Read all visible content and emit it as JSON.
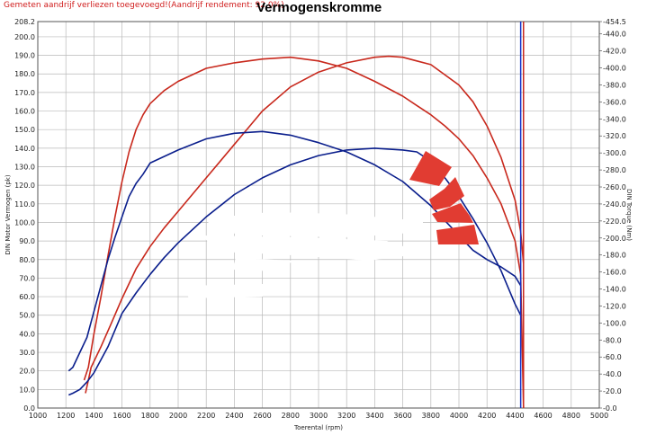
{
  "header": {
    "note": "Gemeten aandrijf verliezen toegevoegd!(Aandrijf rendement: 92.0%)",
    "title": "Vermogenskromme"
  },
  "colors": {
    "red": "#c8281c",
    "blue": "#0a1e8c",
    "grid": "#b9b9b9",
    "marker": "#e13c32",
    "vertical_line": "#1432c8"
  },
  "chart_data": {
    "type": "line",
    "title": "Vermogenskromme",
    "xlabel": "Toerental (rpm)",
    "ylabel_left": "DIN Motor Vermogen (pk)",
    "ylabel_right": "DIN Torque (Nm)",
    "xlim": [
      1000,
      5000
    ],
    "ylim_left": [
      0,
      208.2
    ],
    "ylim_right": [
      0,
      454.5
    ],
    "grid": true,
    "legend": "none",
    "x_ticks": [
      "1000",
      "1200",
      "1400",
      "1600",
      "1800",
      "2000",
      "2200",
      "2400",
      "2600",
      "2800",
      "3000",
      "3200",
      "3400",
      "3600",
      "3800",
      "4000",
      "4200",
      "4400",
      "4600",
      "4800",
      "5000"
    ],
    "y_ticks_left": [
      "0.0",
      "10.0",
      "20.0",
      "30.0",
      "40.0",
      "50.0",
      "60.0",
      "70.0",
      "80.0",
      "90.0",
      "100.0",
      "110.0",
      "120.0",
      "130.0",
      "140.0",
      "150.0",
      "160.0",
      "170.0",
      "180.0",
      "190.0",
      "200.0",
      "208.2"
    ],
    "y_ticks_right": [
      "-0.0",
      "-20.0",
      "-40.0",
      "-60.0",
      "-80.0",
      "-100.0",
      "-120.0",
      "-140.0",
      "-160.0",
      "-180.0",
      "-200.0",
      "-220.0",
      "-240.0",
      "-260.0",
      "-280.0",
      "-300.0",
      "-320.0",
      "-340.0",
      "-360.0",
      "-380.0",
      "-400.0",
      "-420.0",
      "-440.0",
      "-454.5"
    ],
    "series": [
      {
        "color": "red",
        "axis": "left",
        "kind": "power",
        "x": [
          1340,
          1380,
          1450,
          1520,
          1600,
          1700,
          1800,
          1900,
          2000,
          2100,
          2200,
          2300,
          2400,
          2500,
          2600,
          2800,
          3000,
          3200,
          3400,
          3500,
          3600,
          3700,
          3800,
          4000,
          4100,
          4200,
          4300,
          4400,
          4440,
          4460
        ],
        "y": [
          8,
          22,
          33,
          45,
          59,
          75,
          87,
          97,
          106,
          115,
          124,
          133,
          142,
          151,
          160,
          173,
          181,
          186,
          189,
          189.5,
          189,
          187,
          185,
          174,
          165,
          152,
          135,
          112,
          95,
          78
        ]
      },
      {
        "color": "red",
        "axis": "left",
        "kind": "torque",
        "x": [
          1330,
          1360,
          1400,
          1450,
          1500,
          1550,
          1600,
          1650,
          1700,
          1750,
          1800,
          1900,
          2000,
          2200,
          2400,
          2600,
          2800,
          3000,
          3200,
          3400,
          3600,
          3700,
          3800,
          3900,
          4000,
          4100,
          4200,
          4300,
          4400,
          4440,
          4460
        ],
        "y": [
          15,
          22,
          40,
          60,
          82,
          103,
          122,
          138,
          150,
          158,
          164,
          171,
          176,
          183,
          186,
          188,
          189,
          187,
          183,
          176,
          168,
          163,
          158,
          152,
          145,
          136,
          124,
          110,
          90,
          72,
          0
        ]
      },
      {
        "color": "blue",
        "axis": "left",
        "kind": "power",
        "x": [
          1220,
          1250,
          1300,
          1350,
          1400,
          1500,
          1600,
          1700,
          1800,
          1900,
          2000,
          2200,
          2400,
          2600,
          2800,
          3000,
          3200,
          3400,
          3600,
          3700,
          3800,
          3900,
          4000,
          4100,
          4200,
          4300,
          4400,
          4440
        ],
        "y": [
          7,
          8,
          10,
          14,
          19,
          33,
          51,
          62,
          72,
          81,
          89,
          103,
          115,
          124,
          131,
          136,
          139,
          140,
          139,
          138,
          133,
          124,
          114,
          102,
          89,
          74,
          56,
          50
        ]
      },
      {
        "color": "blue",
        "axis": "left",
        "kind": "torque",
        "x": [
          1220,
          1250,
          1300,
          1350,
          1400,
          1450,
          1500,
          1550,
          1600,
          1650,
          1700,
          1750,
          1800,
          2000,
          2200,
          2400,
          2600,
          2800,
          3000,
          3200,
          3400,
          3600,
          3800,
          3900,
          4000,
          4100,
          4200,
          4300,
          4400,
          4440
        ],
        "y": [
          20,
          22,
          30,
          38,
          52,
          66,
          80,
          92,
          103,
          114,
          121,
          126,
          132,
          139,
          145,
          148,
          149,
          147,
          143,
          138,
          131,
          122,
          109,
          101,
          93,
          85,
          80,
          76,
          71,
          66
        ]
      }
    ],
    "vertical_lines": [
      {
        "x": 4440,
        "color": "vertical_line"
      },
      {
        "x": 4460,
        "color": "red"
      }
    ]
  }
}
